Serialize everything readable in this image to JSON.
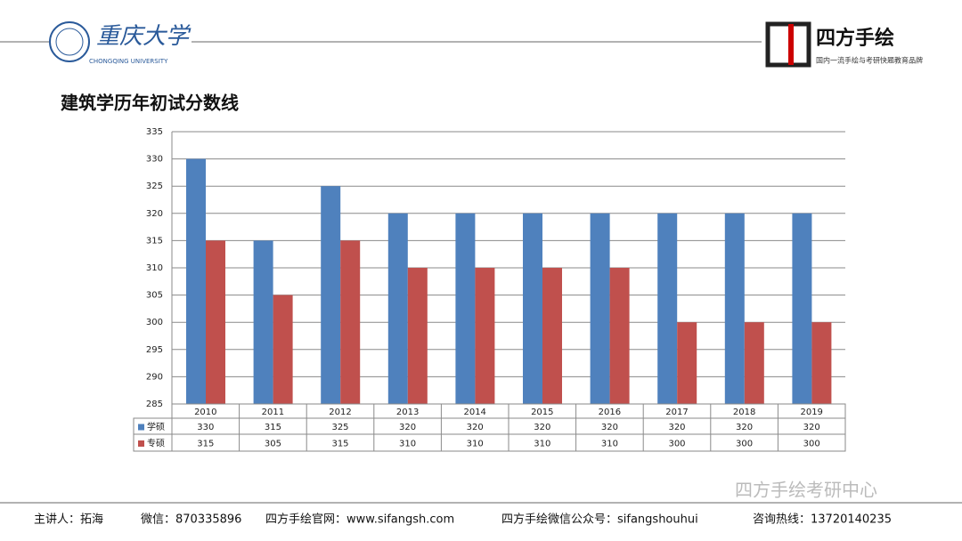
{
  "header": {
    "university": "重庆大学",
    "university_en": "CHONGQING UNIVERSITY",
    "brand": "四方手绘",
    "brand_slogan": "国内一流手绘与考研快题教育品牌"
  },
  "chart_data": {
    "type": "bar",
    "title": "建筑学历年初试分数线",
    "categories": [
      "2010",
      "2011",
      "2012",
      "2013",
      "2014",
      "2015",
      "2016",
      "2017",
      "2018",
      "2019"
    ],
    "series": [
      {
        "name": "学硕",
        "color": "#4f81bd",
        "values": [
          330,
          315,
          325,
          320,
          320,
          320,
          320,
          320,
          320,
          320
        ]
      },
      {
        "name": "专硕",
        "color": "#c0504d",
        "values": [
          315,
          305,
          315,
          310,
          310,
          310,
          310,
          300,
          300,
          300
        ]
      }
    ],
    "ylim": [
      285,
      335
    ],
    "yticks": [
      285,
      290,
      295,
      300,
      305,
      310,
      315,
      320,
      325,
      330,
      335
    ],
    "grid": true,
    "data_table": true
  },
  "footer": {
    "items": [
      "主讲人：拓海",
      "微信：870335896",
      "四方手绘官网：www.sifangsh.com",
      "四方手绘微信公众号：sifangshouhui",
      "咨询热线：13720140235"
    ],
    "watermark": "四方手绘考研中心"
  }
}
